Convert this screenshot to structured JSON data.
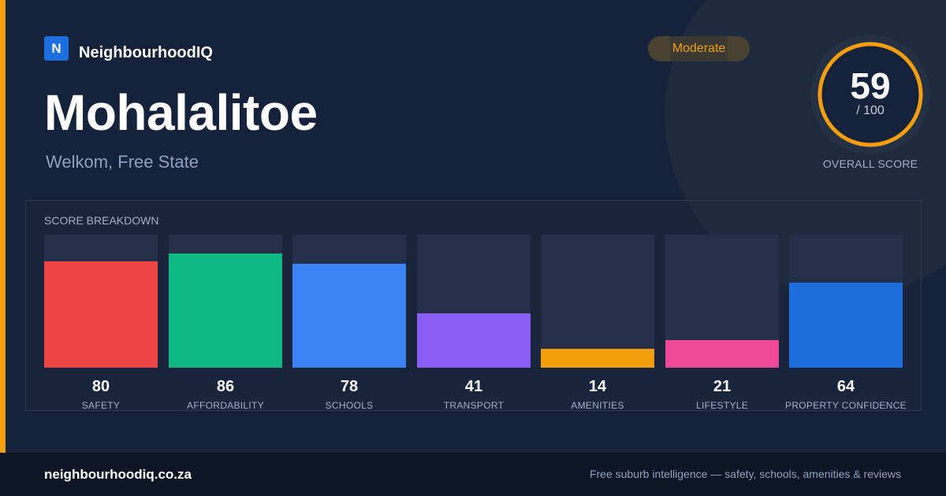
{
  "brand": {
    "logo_letter": "N",
    "name": "NeighbourhoodIQ"
  },
  "suburb": {
    "name": "Mohalalitoe",
    "location": "Welkom, Free State"
  },
  "rating_badge": "Moderate",
  "overall": {
    "score": "59",
    "denominator": "/ 100",
    "label": "OVERALL SCORE",
    "fraction": 0.59
  },
  "breakdown": {
    "title": "SCORE BREAKDOWN",
    "items": [
      {
        "label": "SAFETY",
        "value": 80,
        "color": "#ef4444"
      },
      {
        "label": "AFFORDABILITY",
        "value": 86,
        "color": "#10b981"
      },
      {
        "label": "SCHOOLS",
        "value": 78,
        "color": "#3b82f6"
      },
      {
        "label": "TRANSPORT",
        "value": 41,
        "color": "#8b5cf6"
      },
      {
        "label": "AMENITIES",
        "value": 14,
        "color": "#f59e0b"
      },
      {
        "label": "LIFESTYLE",
        "value": 21,
        "color": "#ec4899"
      },
      {
        "label": "PROPERTY CONFIDENCE",
        "value": 64,
        "color": "#1d6fe0"
      }
    ]
  },
  "footer": {
    "url": "neighbourhoodiq.co.za",
    "tagline": "Free suburb intelligence — safety, schools, amenities & reviews"
  },
  "colors": {
    "accent": "#f59e0b",
    "background": "#15223b",
    "footer": "#0d1526"
  }
}
